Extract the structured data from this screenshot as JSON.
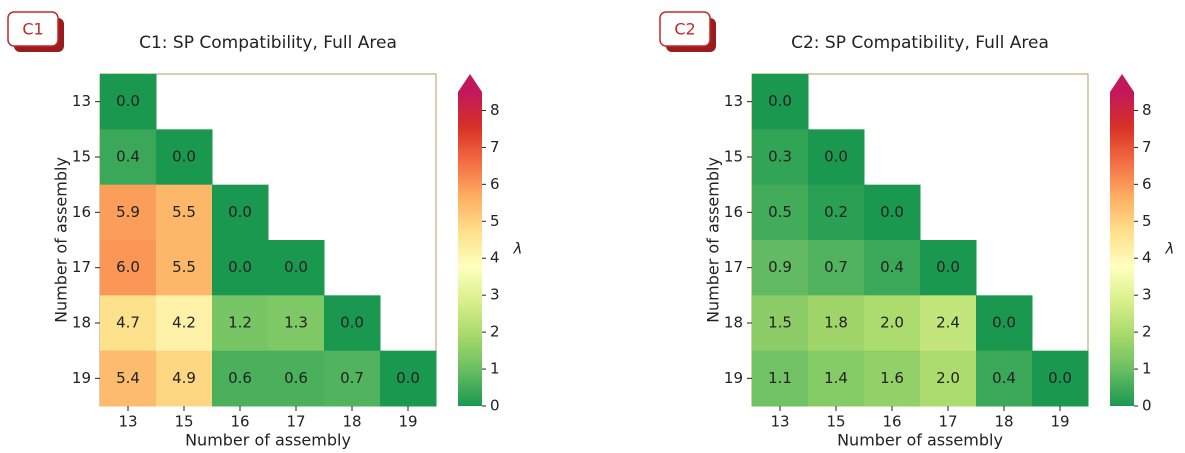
{
  "chart_data": [
    {
      "type": "heatmap",
      "badge": "C1",
      "title": "C1: SP Compatibility, Full Area",
      "x_label": "Number of assembly",
      "y_label": "Number of assembly",
      "x_categories": [
        "13",
        "15",
        "16",
        "17",
        "18",
        "19"
      ],
      "y_categories": [
        "13",
        "15",
        "16",
        "17",
        "18",
        "19"
      ],
      "values": [
        [
          0,
          null,
          null,
          null,
          null,
          null
        ],
        [
          0.4,
          0,
          null,
          null,
          null,
          null
        ],
        [
          5.9,
          5.5,
          0,
          null,
          null,
          null
        ],
        [
          6,
          5.5,
          0,
          0,
          null,
          null
        ],
        [
          4.7,
          4.2,
          1.2,
          1.3,
          0,
          null
        ],
        [
          5.4,
          4.9,
          0.6,
          0.6,
          0.7,
          0
        ]
      ],
      "value_labels": [
        [
          "0.0",
          null,
          null,
          null,
          null,
          null
        ],
        [
          "0.4",
          "0.0",
          null,
          null,
          null,
          null
        ],
        [
          "5.9",
          "5.5",
          "0.0",
          null,
          null,
          null
        ],
        [
          "6.0",
          "5.5",
          "0.0",
          "0.0",
          null,
          null
        ],
        [
          "4.7",
          "4.2",
          "1.2",
          "1.3",
          "0.0",
          null
        ],
        [
          "5.4",
          "4.9",
          "0.6",
          "0.6",
          "0.7",
          "0.0"
        ]
      ],
      "colorbar_label": "λ",
      "clim": [
        0,
        8.5
      ],
      "cticks": [
        0,
        1,
        2,
        3,
        4,
        5,
        6,
        7,
        8
      ],
      "colormap": [
        "#1a9850",
        "#66bd63",
        "#a6d96a",
        "#d9ef8b",
        "#ffffbf",
        "#fee08b",
        "#fdae61",
        "#f46d43",
        "#d73027",
        "#c2185b"
      ]
    },
    {
      "type": "heatmap",
      "badge": "C2",
      "title": "C2: SP Compatibility, Full Area",
      "x_label": "Number of assembly",
      "y_label": "Number of assembly",
      "x_categories": [
        "13",
        "15",
        "16",
        "17",
        "18",
        "19"
      ],
      "y_categories": [
        "13",
        "15",
        "16",
        "17",
        "18",
        "19"
      ],
      "values": [
        [
          0,
          null,
          null,
          null,
          null,
          null
        ],
        [
          0.3,
          0,
          null,
          null,
          null,
          null
        ],
        [
          0.5,
          0.2,
          0,
          null,
          null,
          null
        ],
        [
          0.9,
          0.7,
          0.4,
          0,
          null,
          null
        ],
        [
          1.5,
          1.8,
          2,
          2.4,
          0,
          null
        ],
        [
          1.1,
          1.4,
          1.6,
          2,
          0.4,
          0
        ]
      ],
      "value_labels": [
        [
          "0.0",
          null,
          null,
          null,
          null,
          null
        ],
        [
          "0.3",
          "0.0",
          null,
          null,
          null,
          null
        ],
        [
          "0.5",
          "0.2",
          "0.0",
          null,
          null,
          null
        ],
        [
          "0.9",
          "0.7",
          "0.4",
          "0.0",
          null,
          null
        ],
        [
          "1.5",
          "1.8",
          "2.0",
          "2.4",
          "0.0",
          null
        ],
        [
          "1.1",
          "1.4",
          "1.6",
          "2.0",
          "0.4",
          "0.0"
        ]
      ],
      "colorbar_label": "λ",
      "clim": [
        0,
        8.5
      ],
      "cticks": [
        0,
        1,
        2,
        3,
        4,
        5,
        6,
        7,
        8
      ],
      "colormap": [
        "#1a9850",
        "#66bd63",
        "#a6d96a",
        "#d9ef8b",
        "#ffffbf",
        "#fee08b",
        "#fdae61",
        "#f46d43",
        "#d73027",
        "#c2185b"
      ]
    }
  ]
}
